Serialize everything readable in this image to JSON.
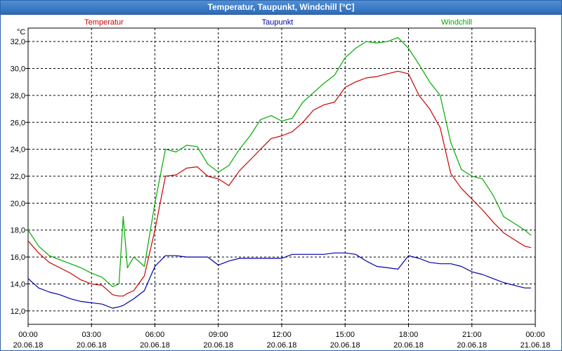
{
  "window": {
    "title": "Temperatur, Taupunkt, Windchill [°C]"
  },
  "chart_data": {
    "type": "line",
    "title": "Temperatur, Taupunkt, Windchill [°C]",
    "ylabel": "°C",
    "ylim": [
      11.0,
      33.0
    ],
    "xlim": [
      0,
      24
    ],
    "grid": true,
    "legend": "top",
    "y_ticks": [
      "12,0",
      "14,0",
      "16,0",
      "18,0",
      "20,0",
      "22,0",
      "24,0",
      "26,0",
      "28,0",
      "30,0",
      "32,0"
    ],
    "x_ticks": [
      {
        "time": "00:00",
        "date": "20.06.18"
      },
      {
        "time": "03:00",
        "date": "20.06.18"
      },
      {
        "time": "06:00",
        "date": "20.06.18"
      },
      {
        "time": "09:00",
        "date": "20.06.18"
      },
      {
        "time": "12:00",
        "date": "20.06.18"
      },
      {
        "time": "15:00",
        "date": "20.06.18"
      },
      {
        "time": "18:00",
        "date": "20.06.18"
      },
      {
        "time": "21:00",
        "date": "20.06.18"
      },
      {
        "time": "00:00",
        "date": "21.06.18"
      }
    ],
    "x_hours": [
      0,
      0.5,
      1,
      1.5,
      2,
      2.5,
      3,
      3.5,
      4,
      4.3,
      4.5,
      4.7,
      5,
      5.5,
      6,
      6.5,
      7,
      7.5,
      8,
      8.5,
      9,
      9.5,
      10,
      10.5,
      11,
      11.5,
      12,
      12.5,
      13,
      13.5,
      14,
      14.5,
      15,
      15.5,
      16,
      16.5,
      17,
      17.5,
      18,
      18.5,
      19,
      19.5,
      20,
      20.5,
      21,
      21.5,
      22,
      22.5,
      23,
      23.5,
      23.8
    ],
    "series": [
      {
        "name": "Temperatur",
        "color": "#cc0000",
        "values": [
          17.2,
          16.3,
          15.6,
          15.2,
          14.8,
          14.3,
          14.0,
          13.9,
          13.2,
          13.1,
          13.1,
          13.3,
          13.5,
          14.6,
          18.0,
          22.0,
          22.1,
          22.6,
          22.7,
          22.0,
          21.8,
          21.3,
          22.4,
          23.2,
          24.0,
          24.8,
          25.0,
          25.3,
          26.0,
          26.9,
          27.3,
          27.5,
          28.6,
          29.0,
          29.3,
          29.4,
          29.6,
          29.8,
          29.6,
          28.0,
          27.0,
          25.6,
          22.2,
          21.1,
          20.3,
          19.5,
          18.6,
          17.8,
          17.3,
          16.8,
          16.7
        ]
      },
      {
        "name": "Taupunkt",
        "color": "#0000aa",
        "values": [
          14.4,
          13.7,
          13.4,
          13.2,
          12.9,
          12.7,
          12.6,
          12.5,
          12.2,
          12.3,
          12.4,
          12.6,
          12.9,
          13.5,
          15.3,
          16.1,
          16.1,
          16.0,
          16.0,
          16.0,
          15.4,
          15.7,
          15.9,
          15.9,
          15.9,
          15.9,
          15.9,
          16.2,
          16.2,
          16.2,
          16.2,
          16.3,
          16.3,
          16.2,
          15.7,
          15.3,
          15.2,
          15.1,
          16.1,
          15.9,
          15.6,
          15.5,
          15.5,
          15.3,
          14.9,
          14.7,
          14.4,
          14.1,
          13.9,
          13.7,
          13.7
        ]
      },
      {
        "name": "Windchill",
        "color": "#00aa00",
        "values": [
          18.0,
          16.8,
          16.1,
          15.8,
          15.5,
          15.2,
          14.8,
          14.5,
          13.8,
          14.0,
          19.0,
          15.2,
          16.0,
          15.3,
          20.0,
          24.0,
          23.8,
          24.3,
          24.2,
          22.9,
          22.3,
          22.8,
          24.0,
          25.0,
          26.2,
          26.5,
          26.1,
          26.3,
          27.5,
          28.2,
          28.9,
          29.5,
          30.8,
          31.5,
          32.0,
          31.9,
          32.0,
          32.3,
          31.5,
          30.3,
          29.0,
          28.0,
          24.5,
          22.5,
          22.0,
          21.8,
          20.6,
          19.0,
          18.5,
          18.0,
          17.6
        ]
      }
    ]
  }
}
